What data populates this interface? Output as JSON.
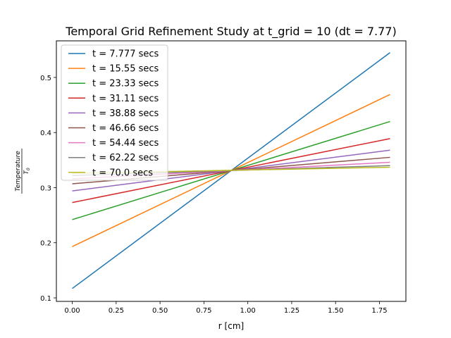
{
  "chart_data": {
    "type": "line",
    "title": "Temporal Grid Refinement Study at t_grid = 10 (dt = 7.77)",
    "xlabel": "r [cm]",
    "ylabel_numerator": "Temperature",
    "ylabel_denominator": "T",
    "ylabel_denominator_sub": "0",
    "xlim": [
      -0.0905,
      1.9005
    ],
    "ylim": [
      0.0936,
      0.5664
    ],
    "xticks": [
      0.0,
      0.25,
      0.5,
      0.75,
      1.0,
      1.25,
      1.5,
      1.75
    ],
    "xtick_labels": [
      "0.00",
      "0.25",
      "0.50",
      "0.75",
      "1.00",
      "1.25",
      "1.50",
      "1.75"
    ],
    "yticks": [
      0.1,
      0.2,
      0.3,
      0.4,
      0.5
    ],
    "ytick_labels": [
      "0.1",
      "0.2",
      "0.3",
      "0.4",
      "0.5"
    ],
    "grid": false,
    "legend_position": "top-left",
    "series": [
      {
        "name": "t = 7.777 secs",
        "color": "#1f77b4",
        "x": [
          0.0,
          1.81
        ],
        "y": [
          0.117,
          0.545
        ]
      },
      {
        "name": "t = 15.55 secs",
        "color": "#ff7f0e",
        "x": [
          0.0,
          1.81
        ],
        "y": [
          0.193,
          0.469
        ]
      },
      {
        "name": "t = 23.33 secs",
        "color": "#2ca02c",
        "x": [
          0.0,
          1.81
        ],
        "y": [
          0.242,
          0.42
        ]
      },
      {
        "name": "t = 31.11 secs",
        "color": "#d62728",
        "x": [
          0.0,
          1.81
        ],
        "y": [
          0.273,
          0.389
        ]
      },
      {
        "name": "t = 38.88 secs",
        "color": "#9467bd",
        "x": [
          0.0,
          1.81
        ],
        "y": [
          0.294,
          0.368
        ]
      },
      {
        "name": "t = 46.66 secs",
        "color": "#8c564b",
        "x": [
          0.0,
          1.81
        ],
        "y": [
          0.307,
          0.355
        ]
      },
      {
        "name": "t = 54.44 secs",
        "color": "#e377c2",
        "x": [
          0.0,
          1.81
        ],
        "y": [
          0.316,
          0.346
        ]
      },
      {
        "name": "t = 62.22 secs",
        "color": "#7f7f7f",
        "x": [
          0.0,
          1.81
        ],
        "y": [
          0.322,
          0.34
        ]
      },
      {
        "name": "t = 70.0 secs",
        "color": "#bcbd22",
        "x": [
          0.0,
          1.81
        ],
        "y": [
          0.326,
          0.337
        ]
      }
    ]
  }
}
